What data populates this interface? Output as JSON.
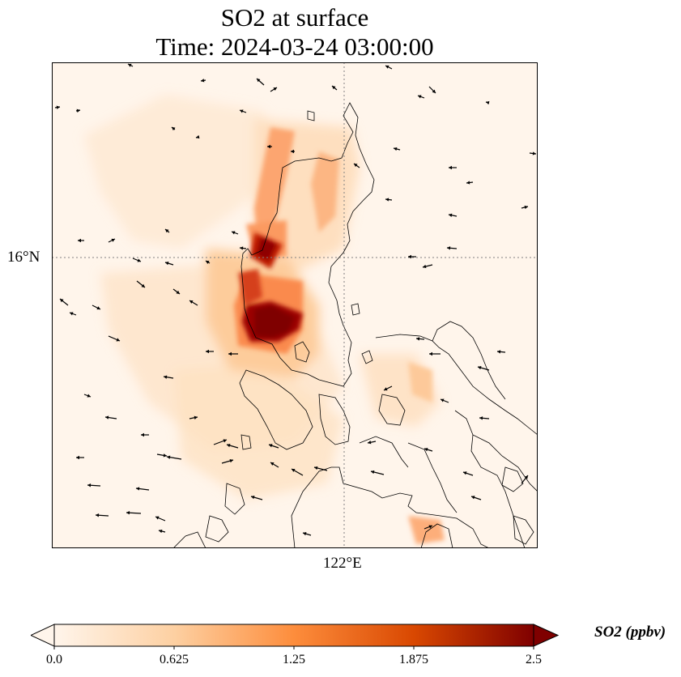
{
  "title": {
    "line1": "SO2 at surface",
    "line2": "Time: 2024-03-24 03:00:00"
  },
  "axes": {
    "lat_label": "16°N",
    "lon_label": "122°E"
  },
  "colorbar": {
    "label": "SO2 (ppbv)",
    "ticks": [
      "0.0",
      "0.625",
      "1.25",
      "1.875",
      "2.5"
    ],
    "colors": [
      "#fff5eb",
      "#fdd0a2",
      "#fd8d3c",
      "#d94801",
      "#7f0000"
    ]
  },
  "colors": {
    "coastline": "#000000",
    "gridline": "#808080",
    "wind_vectors": "#000000"
  }
}
